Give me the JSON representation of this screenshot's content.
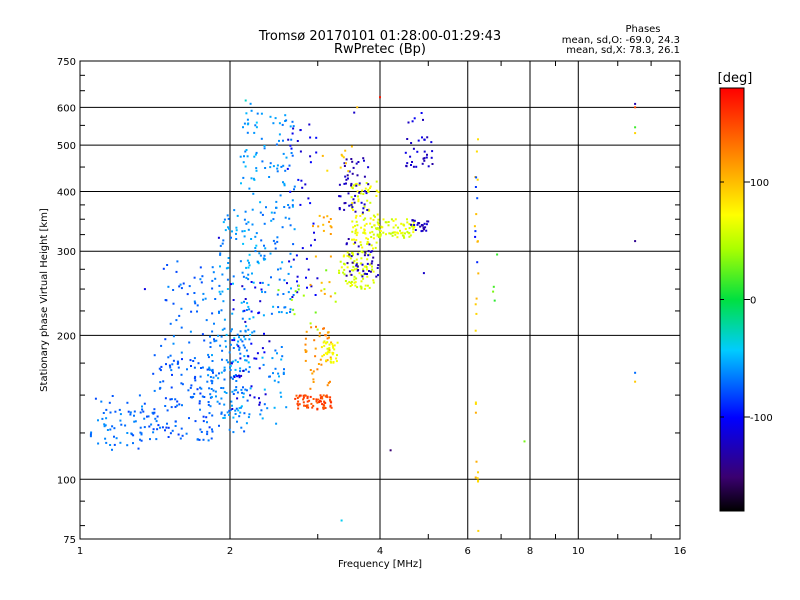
{
  "chart_data": {
    "type": "scatter",
    "title": "Tromsø 20170101 01:28:00-01:29:43",
    "subtitle": "RwPretec (Bp)",
    "xlabel": "Frequency [MHz]",
    "ylabel": "Stationary phase Virtual Height [km]",
    "x_scale": "log",
    "y_scale": "log",
    "xlim": [
      1,
      16
    ],
    "ylim": [
      75,
      750
    ],
    "x_ticks": [
      1,
      2,
      4,
      6,
      8,
      10,
      16
    ],
    "x_tick_labels": [
      "1",
      "2",
      "4",
      "6",
      "8",
      "10",
      "16"
    ],
    "y_ticks": [
      75,
      100,
      200,
      300,
      400,
      500,
      600,
      750
    ],
    "y_tick_labels": [
      "75",
      "100",
      "200",
      "300",
      "400",
      "500",
      "600",
      "750"
    ],
    "grid": true,
    "legend": {
      "title": "Phases",
      "lines": [
        "mean, sd,O: -69.0, 24.3",
        "mean, sd,X:  78.3, 26.1"
      ],
      "placement": "top-right"
    },
    "colorbar": {
      "label": "[deg]",
      "range": [
        -180,
        180
      ],
      "ticks": [
        100,
        0,
        -100
      ],
      "tick_labels": [
        "100",
        "0",
        "-100"
      ],
      "colormap": "rainbow"
    },
    "clusters": [
      {
        "x": [
          1.05,
          1.4
        ],
        "y": [
          115,
          150
        ],
        "phase": -70,
        "count": 70
      },
      {
        "x": [
          1.4,
          1.85
        ],
        "y": [
          120,
          185
        ],
        "phase": -75,
        "count": 130
      },
      {
        "x": [
          1.45,
          1.9
        ],
        "y": [
          190,
          290
        ],
        "phase": -72,
        "count": 55
      },
      {
        "x": [
          1.8,
          2.2
        ],
        "y": [
          125,
          200
        ],
        "phase": -65,
        "count": 90
      },
      {
        "x": [
          1.9,
          2.2
        ],
        "y": [
          130,
          370
        ],
        "phase": -58,
        "count": 110
      },
      {
        "x": [
          2.1,
          2.3
        ],
        "y": [
          200,
          620
        ],
        "phase": -55,
        "count": 70
      },
      {
        "x": [
          2.3,
          2.7
        ],
        "y": [
          220,
          590
        ],
        "phase": -62,
        "count": 110
      },
      {
        "x": [
          2.3,
          2.6
        ],
        "y": [
          130,
          190
        ],
        "phase": -60,
        "count": 30
      },
      {
        "x": [
          2.0,
          2.4
        ],
        "y": [
          140,
          260
        ],
        "phase": -110,
        "count": 45
      },
      {
        "x": [
          2.6,
          3.0
        ],
        "y": [
          240,
          560
        ],
        "phase": -108,
        "count": 45
      },
      {
        "x": [
          2.7,
          3.2
        ],
        "y": [
          140,
          150
        ],
        "phase": 150,
        "count": 70
      },
      {
        "x": [
          2.8,
          3.2
        ],
        "y": [
          150,
          210
        ],
        "phase": 120,
        "count": 40
      },
      {
        "x": [
          3.05,
          3.3
        ],
        "y": [
          175,
          195
        ],
        "phase": 70,
        "count": 35
      },
      {
        "x": [
          2.9,
          3.2
        ],
        "y": [
          230,
          360
        ],
        "phase": 110,
        "count": 20
      },
      {
        "x": [
          3.3,
          3.9
        ],
        "y": [
          250,
          300
        ],
        "phase": 60,
        "count": 80
      },
      {
        "x": [
          3.5,
          4.0
        ],
        "y": [
          300,
          420
        ],
        "phase": 65,
        "count": 100
      },
      {
        "x": [
          3.9,
          4.7
        ],
        "y": [
          320,
          350
        ],
        "phase": 60,
        "count": 70
      },
      {
        "x": [
          4.6,
          5.0
        ],
        "y": [
          330,
          350
        ],
        "phase": -125,
        "count": 25
      },
      {
        "x": [
          3.3,
          3.8
        ],
        "y": [
          360,
          470
        ],
        "phase": -125,
        "count": 50
      },
      {
        "x": [
          3.4,
          4.0
        ],
        "y": [
          260,
          320
        ],
        "phase": -125,
        "count": 40
      },
      {
        "x": [
          4.5,
          5.1
        ],
        "y": [
          450,
          520
        ],
        "phase": -120,
        "count": 30
      },
      {
        "x": [
          3.0,
          3.6
        ],
        "y": [
          440,
          500
        ],
        "phase": 95,
        "count": 10
      },
      {
        "x": [
          2.5,
          3.3
        ],
        "y": [
          200,
          280
        ],
        "phase": 40,
        "count": 15
      },
      {
        "x": [
          4.5,
          5.0
        ],
        "y": [
          555,
          590
        ],
        "phase": -115,
        "count": 5
      },
      {
        "x": [
          6.2,
          6.3
        ],
        "y": [
          95,
          600
        ],
        "phase": 95,
        "count": 22
      },
      {
        "x": [
          6.2,
          6.3
        ],
        "y": [
          280,
          500
        ],
        "phase": -90,
        "count": 6
      },
      {
        "x": [
          6.7,
          6.9
        ],
        "y": [
          230,
          330
        ],
        "phase": 20,
        "count": 4
      }
    ],
    "points": [
      {
        "x": 4.0,
        "y": 630,
        "phase": 170
      },
      {
        "x": 3.55,
        "y": 585,
        "phase": -120
      },
      {
        "x": 3.6,
        "y": 600,
        "phase": 100
      },
      {
        "x": 2.15,
        "y": 620,
        "phase": -30
      },
      {
        "x": 4.2,
        "y": 115,
        "phase": -150
      },
      {
        "x": 3.35,
        "y": 82,
        "phase": -40
      },
      {
        "x": 6.3,
        "y": 78,
        "phase": 90
      },
      {
        "x": 7.8,
        "y": 120,
        "phase": 30
      },
      {
        "x": 13.0,
        "y": 610,
        "phase": -130
      },
      {
        "x": 13.0,
        "y": 600,
        "phase": 150
      },
      {
        "x": 13.0,
        "y": 545,
        "phase": 15
      },
      {
        "x": 13.0,
        "y": 530,
        "phase": 90
      },
      {
        "x": 13.0,
        "y": 315,
        "phase": -140
      },
      {
        "x": 13.0,
        "y": 167,
        "phase": -70
      },
      {
        "x": 13.0,
        "y": 160,
        "phase": 95
      },
      {
        "x": 4.9,
        "y": 270,
        "phase": -120
      },
      {
        "x": 1.35,
        "y": 250,
        "phase": -110
      },
      {
        "x": 1.9,
        "y": 320,
        "phase": -115
      }
    ]
  }
}
